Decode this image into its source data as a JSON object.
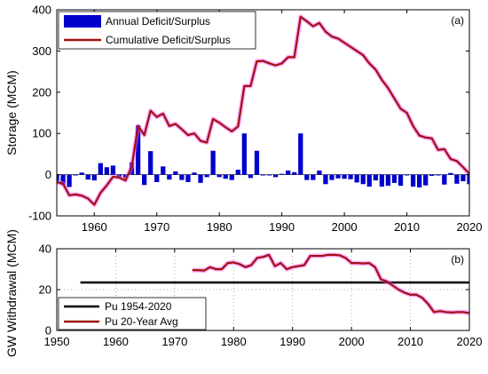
{
  "chart_data": [
    {
      "panel": "(a)",
      "type": "bar+line",
      "ylabel": "Storage (MCM)",
      "xlim": [
        1954,
        2020
      ],
      "ylim": [
        -100,
        400
      ],
      "yticks": [
        -100,
        0,
        100,
        200,
        300,
        400
      ],
      "xticks": [
        1960,
        1970,
        1980,
        1990,
        2000,
        2010,
        2020
      ],
      "legend_position": "top-left",
      "grid": false,
      "colors": {
        "bars": "#0000cd",
        "line": "#a01010",
        "glow": "#ff60ff"
      },
      "series": [
        {
          "name": "Annual Deficit/Surplus",
          "type": "bar",
          "x": [
            1954,
            1955,
            1956,
            1957,
            1958,
            1959,
            1960,
            1961,
            1962,
            1963,
            1964,
            1965,
            1966,
            1967,
            1968,
            1969,
            1970,
            1971,
            1972,
            1973,
            1974,
            1975,
            1976,
            1977,
            1978,
            1979,
            1980,
            1981,
            1982,
            1983,
            1984,
            1985,
            1986,
            1987,
            1988,
            1989,
            1990,
            1991,
            1992,
            1993,
            1994,
            1995,
            1996,
            1997,
            1998,
            1999,
            2000,
            2001,
            2002,
            2003,
            2004,
            2005,
            2006,
            2007,
            2008,
            2009,
            2010,
            2011,
            2012,
            2013,
            2014,
            2015,
            2016,
            2017,
            2018,
            2019,
            2020
          ],
          "values": [
            -18,
            -25,
            -30,
            -2,
            5,
            -12,
            -14,
            28,
            18,
            22,
            -5,
            -8,
            30,
            120,
            -25,
            57,
            -18,
            20,
            -12,
            8,
            -13,
            -18,
            5,
            -20,
            -6,
            58,
            -6,
            -10,
            -13,
            12,
            100,
            -8,
            58,
            -2,
            -2,
            -6,
            2,
            10,
            6,
            100,
            -13,
            -13,
            10,
            -23,
            -13,
            -9,
            -10,
            -11,
            -19,
            -23,
            -29,
            -14,
            -29,
            -27,
            -20,
            -27,
            -2,
            -29,
            -31,
            -26,
            -3,
            -2,
            -24,
            4,
            -22,
            -16,
            -23
          ]
        },
        {
          "name": "Cumulative Deficit/Surplus",
          "type": "line",
          "x": [
            1954,
            1955,
            1956,
            1957,
            1958,
            1959,
            1960,
            1961,
            1962,
            1963,
            1964,
            1965,
            1966,
            1967,
            1968,
            1969,
            1970,
            1971,
            1972,
            1973,
            1974,
            1975,
            1976,
            1977,
            1978,
            1979,
            1980,
            1981,
            1982,
            1983,
            1984,
            1985,
            1986,
            1987,
            1988,
            1989,
            1990,
            1991,
            1992,
            1993,
            1994,
            1995,
            1996,
            1997,
            1998,
            1999,
            2000,
            2001,
            2002,
            2003,
            2004,
            2005,
            2006,
            2007,
            2008,
            2009,
            2010,
            2011,
            2012,
            2013,
            2014,
            2015,
            2016,
            2017,
            2018,
            2019,
            2020
          ],
          "values": [
            -18,
            -22,
            -50,
            -48,
            -51,
            -58,
            -73,
            -44,
            -26,
            -5,
            -7,
            -14,
            20,
            118,
            96,
            155,
            140,
            148,
            118,
            123,
            110,
            96,
            100,
            82,
            78,
            135,
            126,
            115,
            105,
            117,
            215,
            215,
            275,
            276,
            270,
            265,
            270,
            285,
            285,
            383,
            372,
            360,
            368,
            347,
            335,
            330,
            320,
            310,
            300,
            290,
            270,
            255,
            230,
            210,
            185,
            160,
            150,
            118,
            95,
            90,
            88,
            60,
            62,
            38,
            33,
            18,
            2
          ]
        }
      ]
    },
    {
      "panel": "(b)",
      "type": "line",
      "ylabel": "GW Withdrawal (MCM)",
      "xlim": [
        1950,
        2020
      ],
      "ylim": [
        0,
        40
      ],
      "yticks": [
        0,
        20,
        40
      ],
      "xticks": [
        1950,
        1960,
        1970,
        1980,
        1990,
        2000,
        2010,
        2020
      ],
      "legend_position": "bottom-left",
      "grid": true,
      "colors": {
        "pu": "#000000",
        "avg": "#a01010",
        "glow": "#ff60ff"
      },
      "series": [
        {
          "name": "Pu 1954-2020",
          "x": [
            1954,
            2020
          ],
          "values": [
            23.5,
            23.5
          ]
        },
        {
          "name": "Pu 20-Year Avg",
          "x": [
            1973,
            1974,
            1975,
            1976,
            1977,
            1978,
            1979,
            1980,
            1981,
            1982,
            1983,
            1984,
            1985,
            1986,
            1987,
            1988,
            1989,
            1990,
            1991,
            1992,
            1993,
            1994,
            1995,
            1996,
            1997,
            1998,
            1999,
            2000,
            2001,
            2002,
            2003,
            2004,
            2005,
            2006,
            2007,
            2008,
            2009,
            2010,
            2011,
            2012,
            2013,
            2014,
            2015,
            2016,
            2017,
            2018,
            2019,
            2020
          ],
          "values": [
            29.5,
            29.5,
            29.3,
            31,
            30,
            30,
            33,
            33.3,
            32.5,
            31,
            32,
            35.5,
            36,
            37,
            31.5,
            33,
            30,
            31,
            31.5,
            32,
            36.5,
            36.5,
            36.5,
            37,
            37,
            36.8,
            35.5,
            33,
            33,
            32.8,
            33,
            31,
            25,
            24,
            22,
            20,
            18.5,
            17.5,
            17.5,
            16,
            13,
            9,
            9.5,
            9,
            8.8,
            9,
            9,
            8.5
          ]
        }
      ]
    }
  ]
}
